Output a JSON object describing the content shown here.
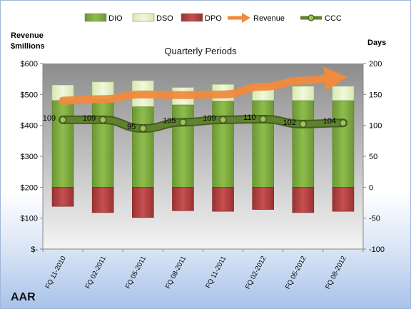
{
  "chart_data": {
    "type": "bar",
    "title": "Quarterly Periods",
    "company": "AAR",
    "left_axis_title": [
      "Revenue",
      "$millions"
    ],
    "right_axis_title": "Days",
    "left_ticks": [
      "$-",
      "$100",
      "$200",
      "$300",
      "$400",
      "$500",
      "$600"
    ],
    "left_ylim": [
      0,
      600
    ],
    "right_ticks": [
      "-100",
      "-50",
      "0",
      "50",
      "100",
      "150",
      "200"
    ],
    "right_ylim": [
      -100,
      200
    ],
    "categories": [
      "FQ 11-2010",
      "FQ 02-2011",
      "FQ 05-2011",
      "FQ 08-2011",
      "FQ 11-2011",
      "FQ 02-2012",
      "FQ 05-2012",
      "FQ 08-2012"
    ],
    "legend": {
      "position": "top",
      "entries": [
        {
          "name": "DIO",
          "kind": "bar",
          "color": "#7aa33d"
        },
        {
          "name": "DSO",
          "kind": "bar",
          "color": "#e2efc4"
        },
        {
          "name": "DPO",
          "kind": "bar",
          "color": "#a63a3a"
        },
        {
          "name": "Revenue",
          "kind": "arrow",
          "color": "#f08a3c"
        },
        {
          "name": "CCC",
          "kind": "line",
          "color": "#5a7a2a"
        }
      ]
    },
    "series": [
      {
        "name": "DIO",
        "axis": "right",
        "values": [
          140,
          142,
          130,
          133,
          139,
          140,
          140,
          140
        ]
      },
      {
        "name": "DSO",
        "axis": "right",
        "values": [
          25,
          28,
          42,
          28,
          27,
          22,
          23,
          23
        ]
      },
      {
        "name": "DPO",
        "axis": "right",
        "values": [
          -31,
          -41,
          -49,
          -38,
          -39,
          -36,
          -41,
          -39
        ]
      },
      {
        "name": "Revenue",
        "axis": "left",
        "values": [
          480,
          485,
          500,
          498,
          500,
          525,
          545,
          555
        ]
      },
      {
        "name": "CCC",
        "axis": "right",
        "values": [
          109,
          109,
          95,
          105,
          109,
          110,
          102,
          104
        ],
        "labels": [
          "109",
          "109",
          "95",
          "105",
          "109",
          "110",
          "102",
          "104"
        ]
      }
    ],
    "grid": false,
    "colors": {
      "plot_top": "#8c8c8c",
      "plot_bottom": "#f4f4f4",
      "dio": "#7aa33d",
      "dso": "#e2efc4",
      "dpo": "#a63a3a",
      "revenue": "#f08a3c",
      "ccc": "#5a7a2a"
    }
  }
}
